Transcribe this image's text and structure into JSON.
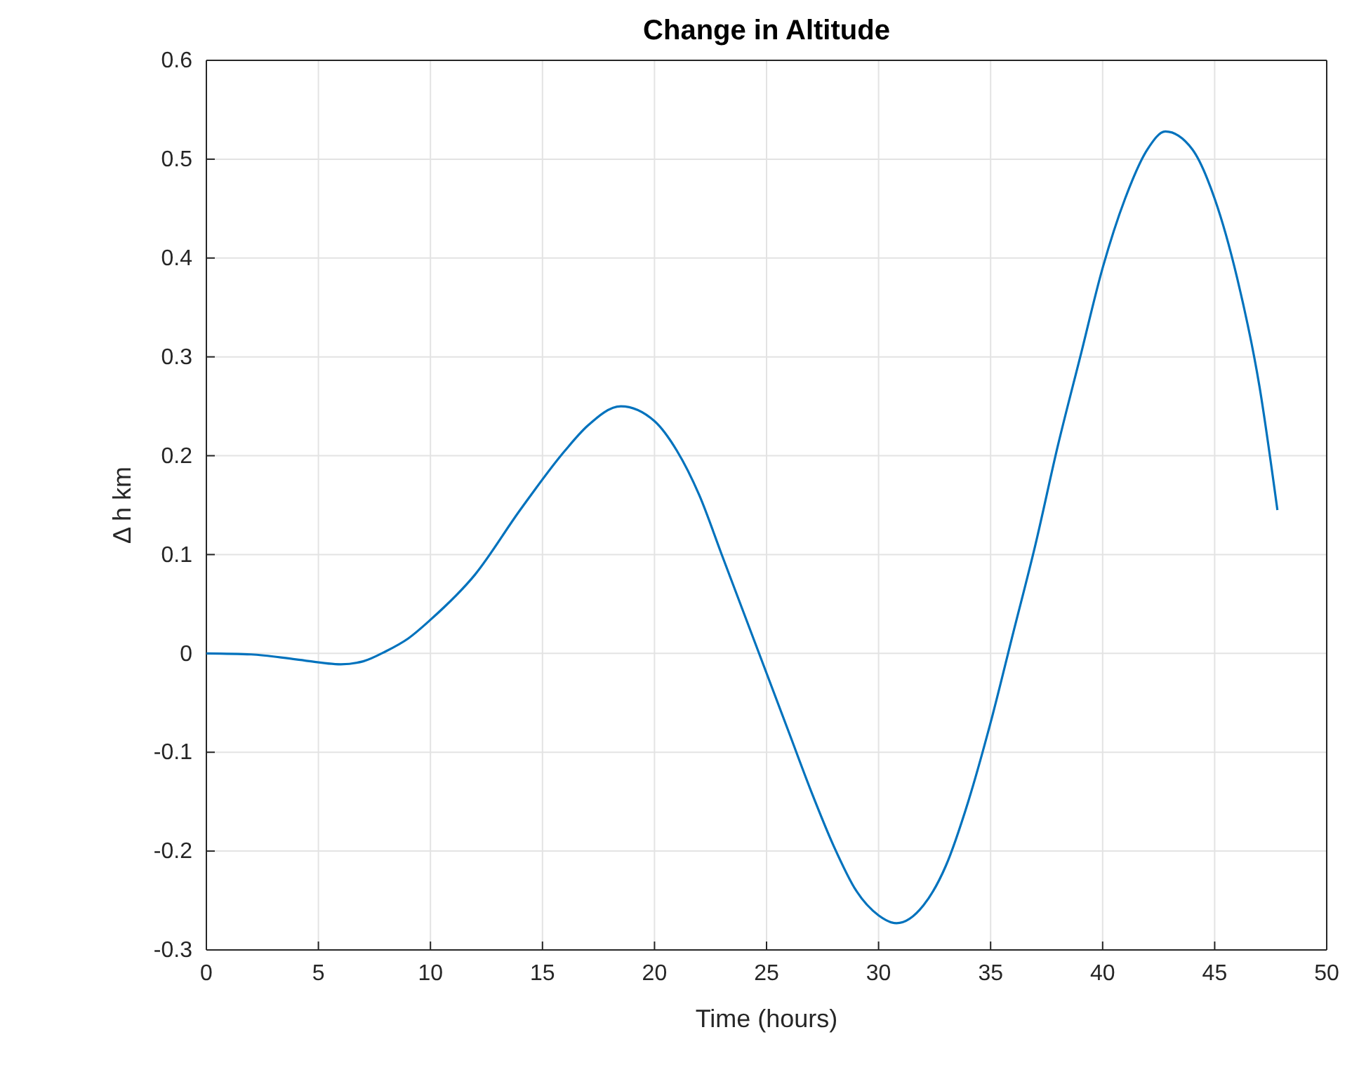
{
  "chart_data": {
    "type": "line",
    "title": "Change in Altitude",
    "xlabel": "Time (hours)",
    "ylabel": "Δ h km",
    "xlim": [
      0,
      50
    ],
    "xticks": [
      0,
      5,
      10,
      15,
      20,
      25,
      30,
      35,
      40,
      45,
      50
    ],
    "ylim": [
      -0.3,
      0.6
    ],
    "yticks": [
      -0.3,
      -0.2,
      -0.1,
      0,
      0.1,
      0.2,
      0.3,
      0.4,
      0.5,
      0.6
    ],
    "grid": true,
    "marker": "none",
    "line_style": "solid",
    "series": [
      {
        "color": "#0072bd",
        "x": [
          0,
          2,
          4,
          6,
          7,
          8,
          9,
          10,
          12,
          14,
          16,
          17,
          18.5,
          20,
          21,
          22,
          23,
          24,
          25,
          26,
          27,
          28,
          29,
          30,
          30.8,
          32,
          33,
          34,
          35,
          36,
          37,
          38,
          39,
          40,
          41,
          42,
          42.8,
          44,
          45,
          46,
          47,
          47.8
        ],
        "values": [
          0,
          -0.001,
          -0.006,
          -0.011,
          -0.008,
          0.002,
          0.015,
          0.034,
          0.08,
          0.145,
          0.205,
          0.23,
          0.25,
          0.235,
          0.205,
          0.16,
          0.1,
          0.04,
          -0.02,
          -0.08,
          -0.14,
          -0.195,
          -0.24,
          -0.265,
          -0.273,
          -0.255,
          -0.215,
          -0.15,
          -0.07,
          0.02,
          0.11,
          0.21,
          0.3,
          0.39,
          0.46,
          0.51,
          0.528,
          0.51,
          0.46,
          0.38,
          0.27,
          0.145
        ]
      }
    ]
  }
}
